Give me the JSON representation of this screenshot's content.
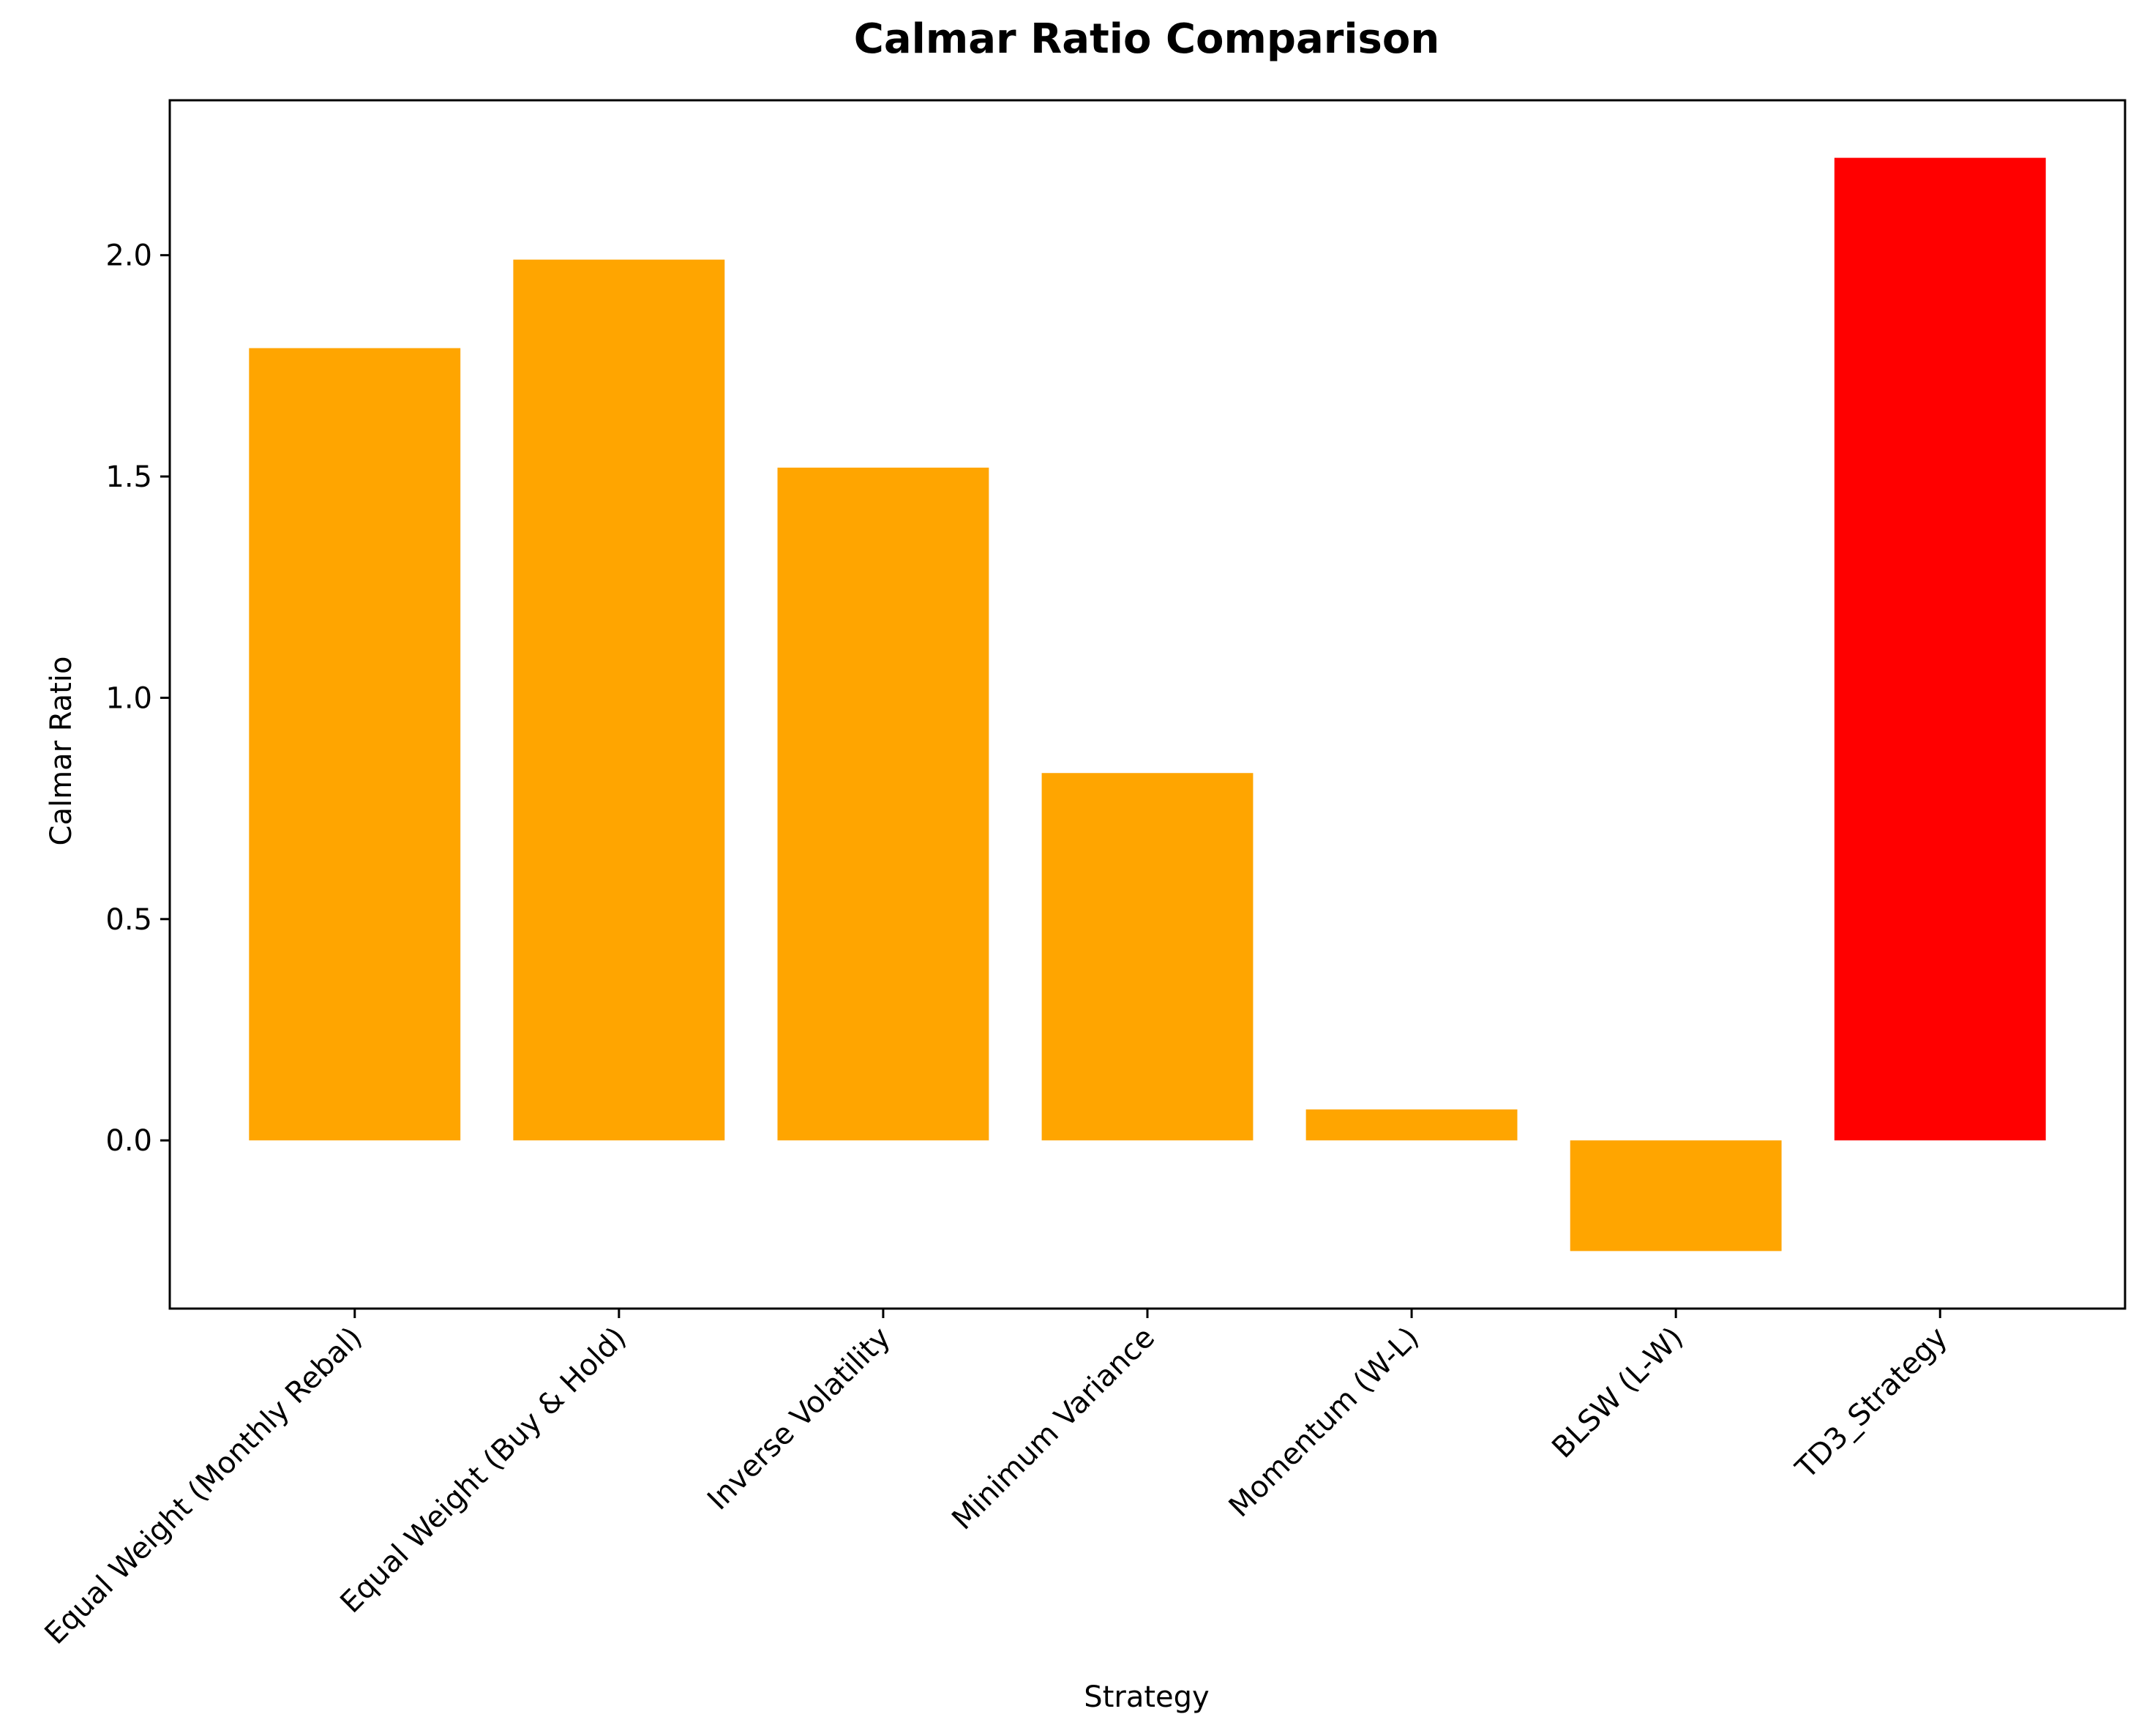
{
  "chart_data": {
    "type": "bar",
    "title": "Calmar Ratio Comparison",
    "xlabel": "Strategy",
    "ylabel": "Calmar Ratio",
    "categories": [
      "Equal Weight (Monthly Rebal)",
      "Equal Weight (Buy & Hold)",
      "Inverse Volatility",
      "Minimum Variance",
      "Momentum (W-L)",
      "BLSW (L-W)",
      "TD3_Strategy"
    ],
    "values": [
      1.79,
      1.99,
      1.52,
      0.83,
      0.07,
      -0.25,
      2.22
    ],
    "colors": [
      "#FFA500",
      "#FFA500",
      "#FFA500",
      "#FFA500",
      "#FFA500",
      "#FFA500",
      "#FF0000"
    ],
    "ylim": [
      -0.38,
      2.35
    ],
    "yticks": [
      0.0,
      0.5,
      1.0,
      1.5,
      2.0
    ],
    "ytick_labels": [
      "0.0",
      "0.5",
      "1.0",
      "1.5",
      "2.0"
    ],
    "grid": false,
    "legend": "none"
  }
}
